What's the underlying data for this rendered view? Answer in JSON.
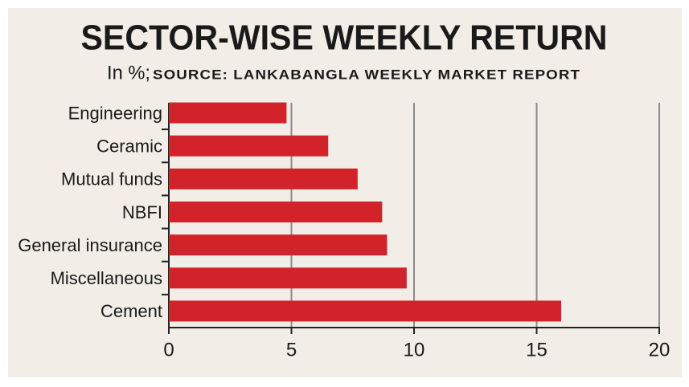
{
  "chart_data": {
    "type": "bar",
    "orientation": "horizontal",
    "title": "SECTOR-WISE WEEKLY RETURN",
    "subtitle": "In %;",
    "source": "SOURCE: LANKABANGLA WEEKLY MARKET REPORT",
    "categories": [
      "Engineering",
      "Ceramic",
      "Mutual funds",
      "NBFI",
      "General insurance",
      "Miscellaneous",
      "Cement"
    ],
    "values": [
      4.8,
      6.5,
      7.7,
      8.7,
      8.9,
      9.7,
      16.0
    ],
    "color": "#d2232a",
    "xlim": [
      0,
      20
    ],
    "xticks": [
      0,
      5,
      10,
      15,
      20
    ],
    "grid": true
  }
}
